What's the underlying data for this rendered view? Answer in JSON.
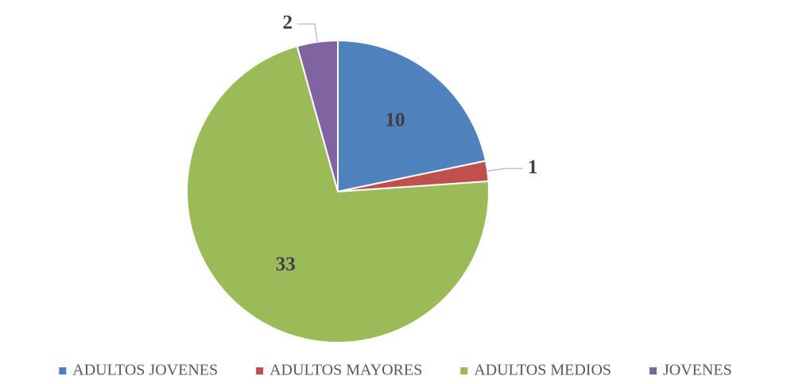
{
  "chart_data": {
    "type": "pie",
    "categories": [
      "ADULTOS JOVENES",
      "ADULTOS MAYORES",
      "ADULTOS MEDIOS",
      "JOVENES"
    ],
    "values": [
      10,
      1,
      33,
      2
    ],
    "colors": [
      "#4f81bd",
      "#c0504d",
      "#9bbb59",
      "#8064a2"
    ],
    "legend": "bottom"
  }
}
